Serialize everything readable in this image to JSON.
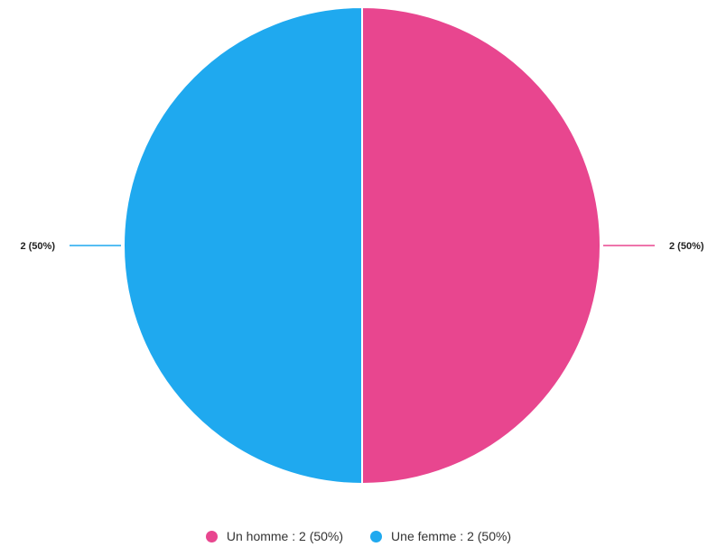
{
  "chart_data": {
    "type": "pie",
    "slices": [
      {
        "name": "Un homme",
        "value": 2,
        "percent": 50,
        "color": "#e8468f",
        "data_label": "2 (50%)",
        "legend_label": "Un homme : 2 (50%)"
      },
      {
        "name": "Une femme",
        "value": 2,
        "percent": 50,
        "color": "#1fa9ef",
        "data_label": "2 (50%)",
        "legend_label": "Une femme : 2 (50%)"
      }
    ],
    "legend_position": "bottom"
  }
}
